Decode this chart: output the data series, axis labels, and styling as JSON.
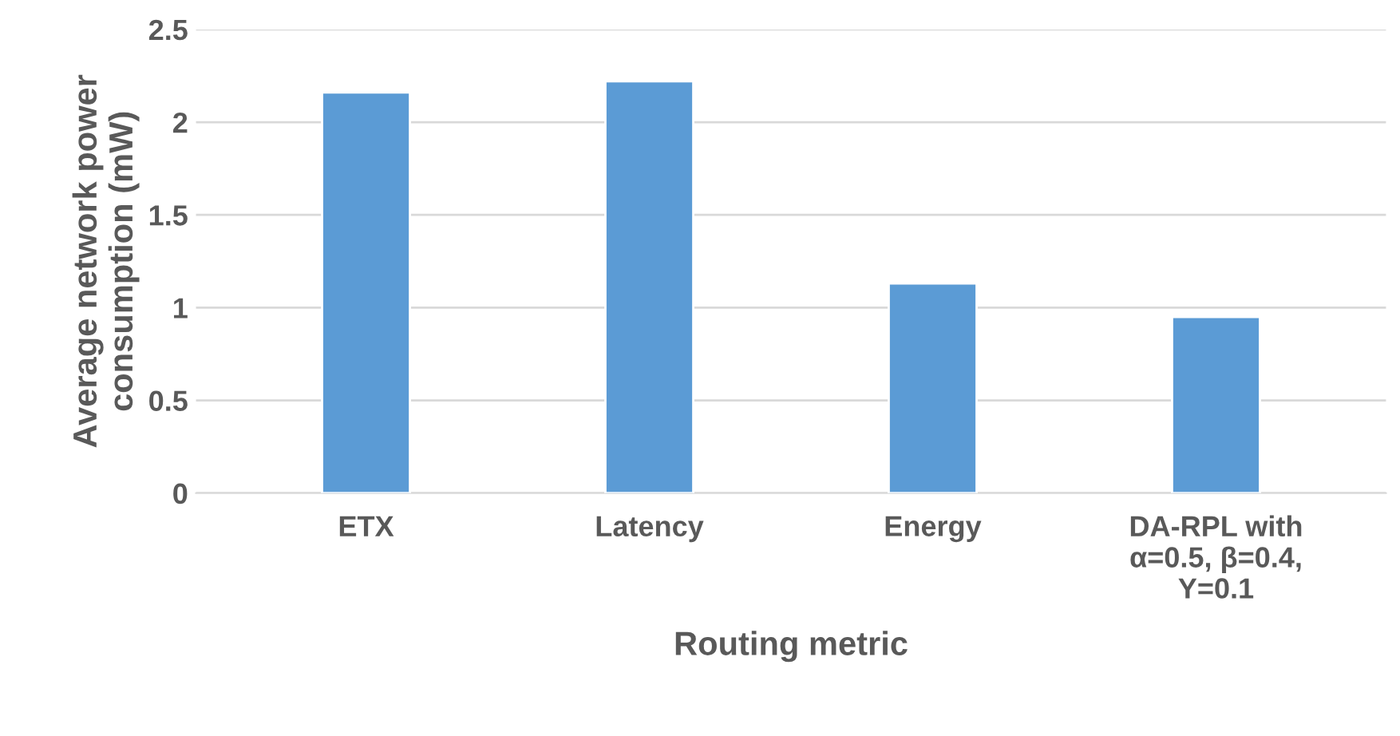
{
  "chart_data": {
    "type": "bar",
    "xlabel": "Routing metric",
    "ylabel": "Average network power\nconsumption (mW)",
    "categories": [
      "ETX",
      "Latency",
      "Energy",
      "DA-RPL with\nα=0.5, β=0.4,\nΥ=0.1"
    ],
    "values": [
      2.16,
      2.22,
      1.13,
      0.95
    ],
    "color": "#5b9bd5",
    "ylim": [
      0,
      2.5
    ],
    "yticks": [
      0,
      0.5,
      1,
      1.5,
      2,
      2.5
    ],
    "grid": "y"
  }
}
